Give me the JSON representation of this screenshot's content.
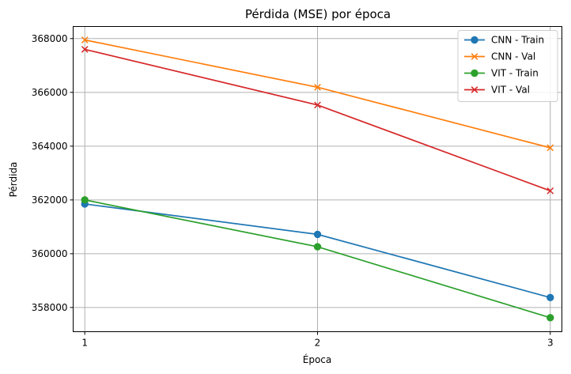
{
  "chart_data": {
    "type": "line",
    "title": "Pérdida (MSE) por época",
    "xlabel": "Época",
    "ylabel": "Pérdida",
    "x": [
      1,
      2,
      3
    ],
    "xticks": [
      "1",
      "2",
      "3"
    ],
    "yticks": [
      358000,
      360000,
      362000,
      364000,
      366000,
      368000
    ],
    "ytick_labels": [
      "358000",
      "360000",
      "362000",
      "364000",
      "366000",
      "368000"
    ],
    "xlim": [
      0.95,
      3.05
    ],
    "ylim": [
      357100,
      368450
    ],
    "grid": true,
    "legend_position": "top-right",
    "series": [
      {
        "name": "CNN - Train",
        "values": [
          361850,
          360720,
          358370
        ],
        "color": "#1f77b4",
        "marker": "circle"
      },
      {
        "name": "CNN - Val",
        "values": [
          367950,
          366190,
          363940
        ],
        "color": "#ff7f0e",
        "marker": "x"
      },
      {
        "name": "VIT - Train",
        "values": [
          362000,
          360260,
          357620
        ],
        "color": "#2ca02c",
        "marker": "circle"
      },
      {
        "name": "VIT - Val",
        "values": [
          367600,
          365530,
          362340
        ],
        "color": "#d62728",
        "marker": "x"
      }
    ]
  }
}
